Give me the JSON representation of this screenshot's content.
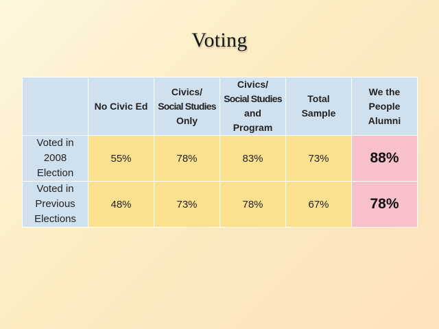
{
  "slide": {
    "title": "Voting"
  },
  "chart_data": {
    "type": "table",
    "title": "Voting",
    "columns": [
      {
        "lines": [
          "No Civic Ed"
        ]
      },
      {
        "lines": [
          "Civics/",
          "Social Studies",
          "Only"
        ]
      },
      {
        "lines": [
          "Civics/",
          "Social Studies",
          "and",
          "Program"
        ]
      },
      {
        "lines": [
          "Total",
          "Sample"
        ]
      },
      {
        "lines": [
          "We the",
          "People",
          "Alumni"
        ]
      }
    ],
    "rows": [
      {
        "label_lines": [
          "Voted in",
          "2008",
          "Election"
        ],
        "cells": [
          "55%",
          "78%",
          "83%",
          "73%",
          "88%"
        ],
        "values": [
          55,
          78,
          83,
          73,
          88
        ]
      },
      {
        "label_lines": [
          "Voted in",
          "Previous",
          "Elections"
        ],
        "cells": [
          "48%",
          "73%",
          "78%",
          "67%",
          "78%"
        ],
        "values": [
          48,
          73,
          78,
          67,
          78
        ]
      }
    ],
    "highlight_column": "We the People Alumni",
    "colors": {
      "header_bg": "#cfe0ef",
      "value_bg": "#fbe08f",
      "highlight_bg": "#f8c0cb"
    }
  }
}
